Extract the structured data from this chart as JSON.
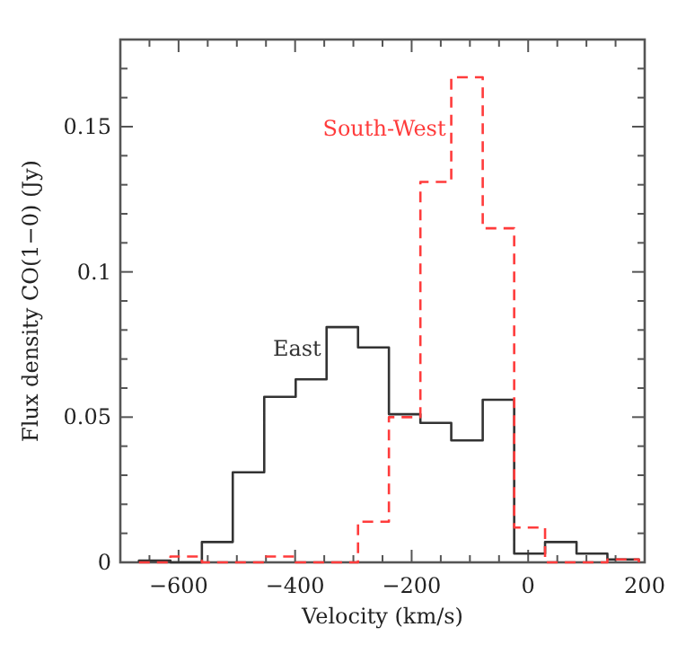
{
  "chart_data": {
    "type": "histogram",
    "xlabel": "Velocity (km/s)",
    "ylabel": "Flux density CO(1−0) (Jy)",
    "bins": [
      -668,
      -614,
      -560,
      -507,
      -453,
      -399,
      -346,
      -292,
      -239,
      -185,
      -132,
      -78,
      -24,
      29,
      83,
      136,
      190
    ],
    "series": [
      {
        "name": "East",
        "color": "#333333",
        "line_style": "solid",
        "values": [
          0.0006,
          0,
          0.007,
          0.031,
          0.057,
          0.063,
          0.081,
          0.074,
          0.051,
          0.048,
          0.042,
          0.056,
          0.003,
          0.007,
          0.003,
          0.001
        ]
      },
      {
        "name": "South-West",
        "color": "#ff3b3b",
        "line_style": "dashed",
        "values": [
          0,
          0.002,
          0,
          0,
          0.002,
          0,
          0,
          0.014,
          0.05,
          0.131,
          0.167,
          0.115,
          0.012,
          0,
          0,
          0.001
        ]
      }
    ],
    "xlim": [
      -700,
      200
    ],
    "xticks": [
      {
        "value": -700,
        "label": null
      },
      {
        "value": -650,
        "label": null
      },
      -600,
      {
        "value": -550,
        "label": null
      },
      {
        "value": -500,
        "label": null
      },
      {
        "value": -450,
        "label": null
      },
      -400,
      {
        "value": -350,
        "label": null
      },
      {
        "value": -300,
        "label": null
      },
      {
        "value": -250,
        "label": null
      },
      -200,
      {
        "value": -150,
        "label": null
      },
      {
        "value": -100,
        "label": null
      },
      {
        "value": -50,
        "label": null
      },
      0,
      {
        "value": 50,
        "label": null
      },
      {
        "value": 100,
        "label": null
      },
      {
        "value": 150,
        "label": null
      },
      200
    ],
    "ylim": [
      0,
      0.18
    ],
    "yticks": [
      0,
      {
        "value": 0.01,
        "label": null
      },
      {
        "value": 0.02,
        "label": null
      },
      {
        "value": 0.03,
        "label": null
      },
      {
        "value": 0.04,
        "label": null
      },
      0.05,
      {
        "value": 0.06,
        "label": null
      },
      {
        "value": 0.07,
        "label": null
      },
      {
        "value": 0.08,
        "label": null
      },
      {
        "value": 0.09,
        "label": null
      },
      0.1,
      {
        "value": 0.11,
        "label": null
      },
      {
        "value": 0.12,
        "label": null
      },
      {
        "value": 0.13,
        "label": null
      },
      {
        "value": 0.14,
        "label": null
      },
      0.15,
      {
        "value": 0.16,
        "label": null
      },
      {
        "value": 0.17,
        "label": null
      }
    ]
  }
}
